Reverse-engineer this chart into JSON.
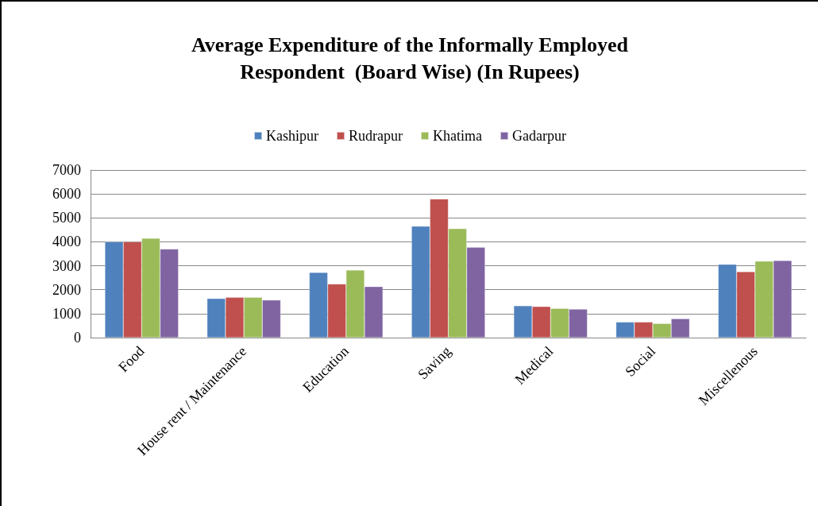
{
  "chart_data": {
    "type": "bar",
    "title": "Average Expenditure of the Informally Employed\nRespondent  (Board Wise) (In Rupees)",
    "categories": [
      "Food",
      "House rent / Maintenance",
      "Education",
      "Saving",
      "Medical",
      "Social",
      "Miscellenous"
    ],
    "series": [
      {
        "name": "Kashipur",
        "color": "#4f81bd",
        "values": [
          4000,
          1630,
          2720,
          4650,
          1330,
          650,
          3060
        ]
      },
      {
        "name": "Rudrapur",
        "color": "#c0504d",
        "values": [
          4000,
          1680,
          2240,
          5790,
          1300,
          650,
          2750
        ]
      },
      {
        "name": "Khatima",
        "color": "#9bbb59",
        "values": [
          4150,
          1680,
          2820,
          4550,
          1220,
          590,
          3190
        ]
      },
      {
        "name": "Gadarpur",
        "color": "#8064a2",
        "values": [
          3700,
          1570,
          2130,
          3770,
          1190,
          790,
          3220
        ]
      }
    ],
    "ylim": [
      0,
      7000
    ],
    "yticks": [
      0,
      1000,
      2000,
      3000,
      4000,
      5000,
      6000,
      7000
    ],
    "grid": "y",
    "legend": "top"
  }
}
